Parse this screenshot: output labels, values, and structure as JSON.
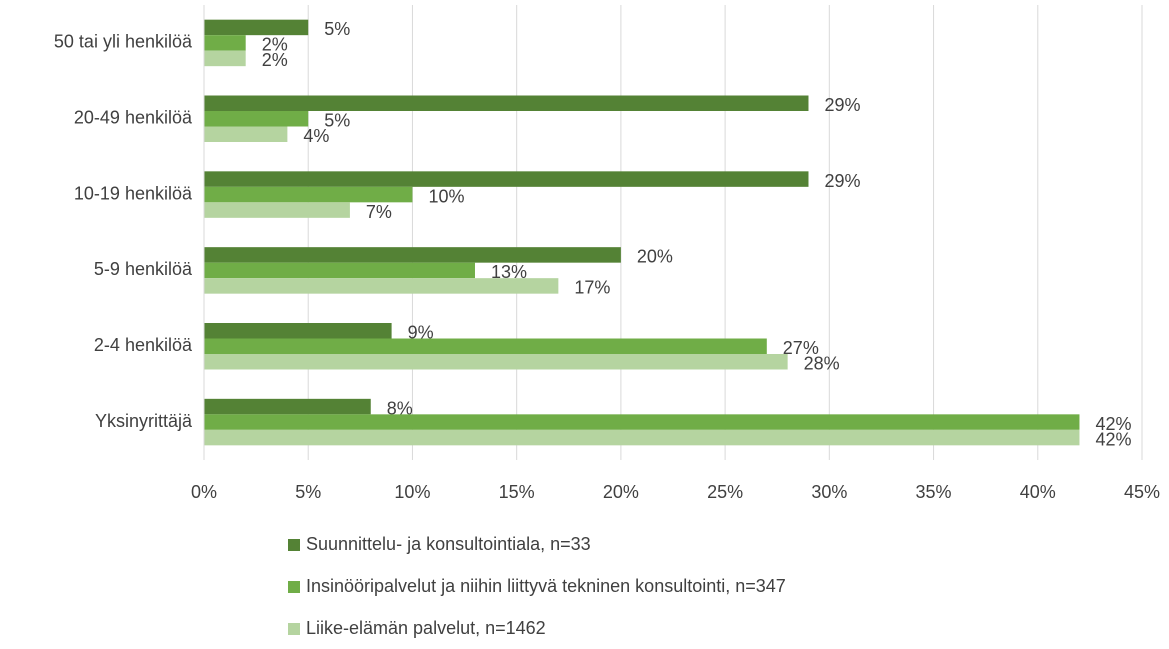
{
  "chart_data": {
    "type": "barh",
    "categories": [
      "50 tai yli henkilöä",
      "20-49 henkilöä",
      "10-19 henkilöä",
      "5-9 henkilöä",
      "2-4 henkilöä",
      "Yksinyrittäjä"
    ],
    "series": [
      {
        "name": "Suunnittelu- ja konsultointiala, n=33",
        "color": "#548235",
        "values": [
          5,
          29,
          29,
          20,
          9,
          8
        ],
        "value_labels": [
          "5%",
          "29%",
          "29%",
          "20%",
          "9%",
          "8%"
        ]
      },
      {
        "name": "Insinööripalvelut ja niihin liittyvä tekninen konsultointi, n=347",
        "color": "#70ad47",
        "values": [
          2,
          5,
          10,
          13,
          27,
          42
        ],
        "value_labels": [
          "2%",
          "5%",
          "10%",
          "13%",
          "27%",
          "42%"
        ]
      },
      {
        "name": "Liike-elämän palvelut, n=1462",
        "color": "#b5d4a0",
        "values": [
          2,
          4,
          7,
          17,
          28,
          42
        ],
        "value_labels": [
          "2%",
          "4%",
          "7%",
          "17%",
          "28%",
          "42%"
        ]
      }
    ],
    "xlim": [
      0,
      45
    ],
    "xticks": [
      {
        "value": 0,
        "label": "0%"
      },
      {
        "value": 5,
        "label": "5%"
      },
      {
        "value": 10,
        "label": "10%"
      },
      {
        "value": 15,
        "label": "15%"
      },
      {
        "value": 20,
        "label": "20%"
      },
      {
        "value": 25,
        "label": "25%"
      },
      {
        "value": 30,
        "label": "30%"
      },
      {
        "value": 35,
        "label": "35%"
      },
      {
        "value": 40,
        "label": "40%"
      },
      {
        "value": 45,
        "label": "45%"
      }
    ],
    "grid": true,
    "legend": "bottom"
  }
}
